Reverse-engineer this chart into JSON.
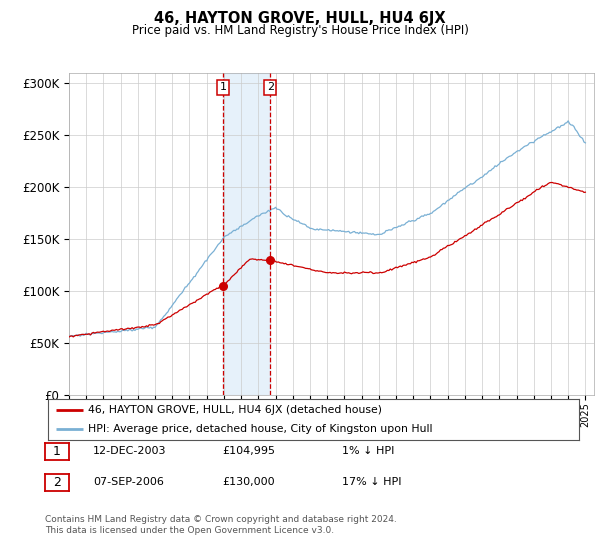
{
  "title": "46, HAYTON GROVE, HULL, HU4 6JX",
  "subtitle": "Price paid vs. HM Land Registry's House Price Index (HPI)",
  "ylim": [
    0,
    310000
  ],
  "yticks": [
    0,
    50000,
    100000,
    150000,
    200000,
    250000,
    300000
  ],
  "ytick_labels": [
    "£0",
    "£50K",
    "£100K",
    "£150K",
    "£200K",
    "£250K",
    "£300K"
  ],
  "line1_color": "#cc0000",
  "line2_color": "#7ab0d4",
  "sale1_date": 2003.95,
  "sale1_price": 104995,
  "sale2_date": 2006.69,
  "sale2_price": 130000,
  "legend_line1": "46, HAYTON GROVE, HULL, HU4 6JX (detached house)",
  "legend_line2": "HPI: Average price, detached house, City of Kingston upon Hull",
  "table_row1_num": "1",
  "table_row1_date": "12-DEC-2003",
  "table_row1_price": "£104,995",
  "table_row1_hpi": "1% ↓ HPI",
  "table_row2_num": "2",
  "table_row2_date": "07-SEP-2006",
  "table_row2_price": "£130,000",
  "table_row2_hpi": "17% ↓ HPI",
  "footer_line1": "Contains HM Land Registry data © Crown copyright and database right 2024.",
  "footer_line2": "This data is licensed under the Open Government Licence v3.0.",
  "shaded_region_color": "#d6e8f7",
  "vline_color": "#cc0000",
  "background_color": "#ffffff",
  "xlim_start": 1995.0,
  "xlim_end": 2025.5
}
